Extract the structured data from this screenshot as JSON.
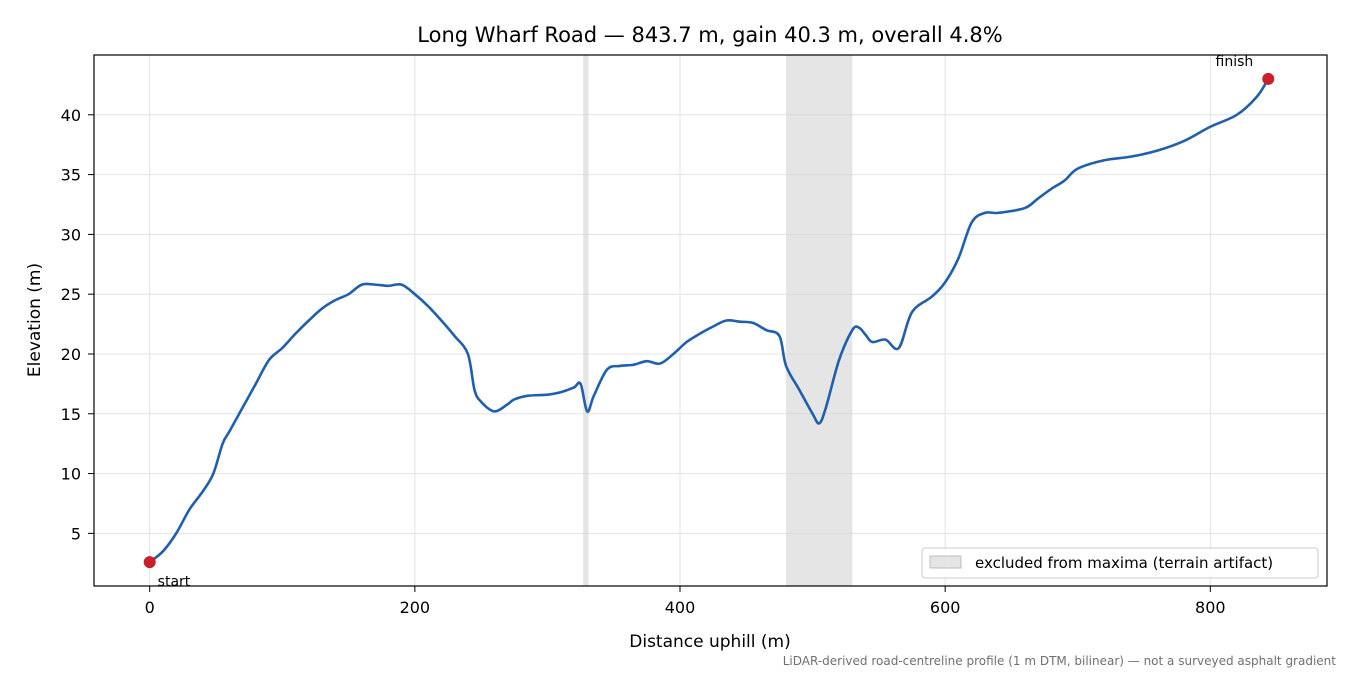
{
  "chart_data": {
    "type": "line",
    "title": "Long Wharf Road — 843.7 m, gain 40.3 m, overall 4.8%",
    "xlabel": "Distance uphill (m)",
    "ylabel": "Elevation (m)",
    "xlim": [
      -42,
      888
    ],
    "ylim": [
      0.6,
      45
    ],
    "xticks": [
      0,
      200,
      400,
      600,
      800
    ],
    "yticks": [
      5,
      10,
      15,
      20,
      25,
      30,
      35,
      40
    ],
    "grid": true,
    "line_color": "#1f5fae",
    "marker_color": "#c8202a",
    "band_color": "#d3d3d3",
    "series": [
      {
        "x": [
          0,
          10,
          20,
          30,
          40,
          48,
          55,
          60,
          70,
          80,
          90,
          100,
          110,
          120,
          130,
          140,
          150,
          160,
          170,
          180,
          190,
          200,
          210,
          220,
          230,
          240,
          245,
          250,
          260,
          270,
          275,
          285,
          300,
          310,
          320,
          325,
          330,
          335,
          345,
          355,
          365,
          375,
          385,
          395,
          405,
          415,
          425,
          435,
          445,
          455,
          465,
          475,
          480,
          490,
          500,
          505,
          510,
          520,
          530,
          535,
          540,
          545,
          555,
          565,
          575,
          590,
          600,
          610,
          620,
          630,
          640,
          660,
          670,
          680,
          690,
          700,
          720,
          740,
          760,
          780,
          800,
          820,
          835,
          843.7
        ],
        "y": [
          2.6,
          3.5,
          5.0,
          7.0,
          8.5,
          10.0,
          12.5,
          13.5,
          15.5,
          17.5,
          19.5,
          20.5,
          21.7,
          22.8,
          23.8,
          24.5,
          25.0,
          25.8,
          25.8,
          25.7,
          25.8,
          25.0,
          24.0,
          22.8,
          21.5,
          20.0,
          17.0,
          16.0,
          15.2,
          15.8,
          16.2,
          16.5,
          16.6,
          16.8,
          17.2,
          17.5,
          15.2,
          16.5,
          18.7,
          19.0,
          19.1,
          19.4,
          19.2,
          20.0,
          21.0,
          21.7,
          22.3,
          22.8,
          22.7,
          22.6,
          22.0,
          21.5,
          19.0,
          17.0,
          15.0,
          14.2,
          15.5,
          19.5,
          22.0,
          22.2,
          21.6,
          21.0,
          21.2,
          20.5,
          23.5,
          24.8,
          26.0,
          28.0,
          31.0,
          31.8,
          31.8,
          32.2,
          33.0,
          33.8,
          34.5,
          35.5,
          36.2,
          36.5,
          37.0,
          37.8,
          39.0,
          40.0,
          41.5,
          43.0
        ]
      }
    ],
    "endpoints": [
      {
        "label": "start",
        "x": 0,
        "y": 2.6
      },
      {
        "label": "finish",
        "x": 843.7,
        "y": 43.0
      }
    ],
    "excluded_ranges": [
      [
        327,
        331
      ],
      [
        480,
        530
      ]
    ],
    "legend": {
      "label": "excluded from maxima (terrain artifact)",
      "position": "lower-right"
    },
    "footnote": "LiDAR-derived road-centreline profile (1 m DTM, bilinear) — not a surveyed asphalt gradient"
  }
}
